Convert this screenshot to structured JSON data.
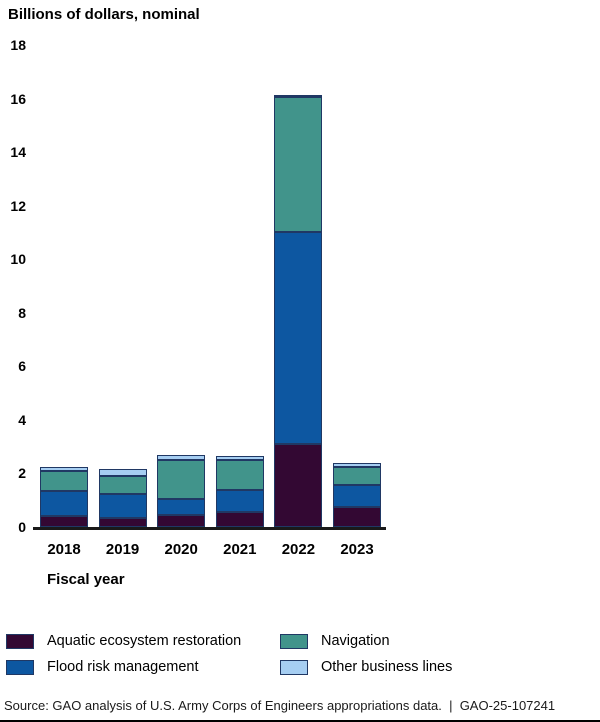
{
  "title": "Billions of dollars, nominal",
  "chart_data": {
    "type": "bar",
    "stacked": true,
    "title": "Billions of dollars, nominal",
    "xlabel": "Fiscal year",
    "ylabel": "Billions of dollars, nominal",
    "categories": [
      "2018",
      "2019",
      "2020",
      "2021",
      "2022",
      "2023"
    ],
    "series": [
      {
        "name": "Aquatic ecosystem restoration",
        "color": "#330833",
        "values": [
          0.4,
          0.35,
          0.45,
          0.55,
          3.1,
          0.75
        ]
      },
      {
        "name": "Flood risk management",
        "color": "#0d57a1",
        "values": [
          0.95,
          0.9,
          0.6,
          0.85,
          7.9,
          0.8
        ]
      },
      {
        "name": "Navigation",
        "color": "#41948b",
        "values": [
          0.75,
          0.65,
          1.45,
          1.1,
          5.05,
          0.7
        ]
      },
      {
        "name": "Other business lines",
        "color": "#a6cef2",
        "values": [
          0.15,
          0.25,
          0.2,
          0.15,
          0.1,
          0.15
        ]
      }
    ],
    "ylim": [
      0,
      18
    ],
    "ytick_step": 2,
    "grid": false,
    "legend_position": "bottom",
    "legend_columns": [
      [
        "Aquatic ecosystem restoration",
        "Flood risk management"
      ],
      [
        "Navigation",
        "Other business lines"
      ]
    ]
  },
  "source_note": "Source: GAO analysis of U.S. Army Corps of Engineers appropriations data.  |  GAO-25-107241"
}
